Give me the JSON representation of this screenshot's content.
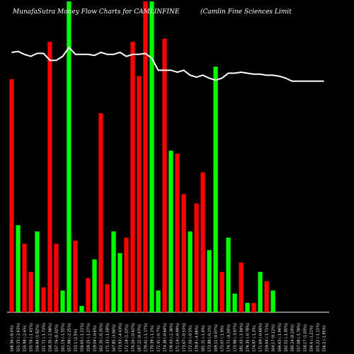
{
  "header": {
    "title_left": "MunafaSutra  Money Flow  Charts for CAMLINFINE",
    "title_right": "(Camlin  Fine   Sciences Limit"
  },
  "colors": {
    "up": "#00ff00",
    "down": "#ff0000",
    "line": "#ffffff",
    "background": "#000000"
  },
  "chart_data": {
    "type": "bar",
    "ylim": [
      0,
      100
    ],
    "line_ylim": [
      0,
      100
    ],
    "categories": [
      "168.36 (-8.0%)",
      "151.33 (-2.63%)",
      "155.98 (-2.6%)",
      "155.76 (-1.41%)",
      "156.84 (1.82%)",
      "151.71 (-1.73%)",
      "158.35 (-2.08%)",
      "157.76 (0.32%)",
      "161.19 (-1.55%)",
      "157.98 (-2.25%)",
      "153.1 (2.5%)",
      "156.65 (-1.21%)",
      "159.25 (-1.27%)",
      "159.04 (-0.6%)",
      "162.35 (-0.35%)",
      "171.33 (-1.59%)",
      "167.85 (3.06%)",
      "173.93 (-4.43%)",
      "172.18 (1.32%)",
      "176.26 (-0.42%)",
      "187.22 (0.47%)",
      "179.41 (-1.17%)",
      "170.39 (-1.2%)",
      "172.41 (-0.7%)",
      "174.36 (-0.64%)",
      "178.43 (-2.36%)",
      "171.19 (-0.99%)",
      "173.67 (-0.53%)",
      "172.55 (-0.3%)",
      "179.9 (-4.08%)",
      "181.31 (-1.6%)",
      "173.88 (-0.1%)",
      "169.11 (0.07%)",
      "173.07 (-1.9%)",
      "174.71 (4.26%)",
      "173.98 (-3.07%)",
      "181.43 (-1.04%)",
      "179.35 (-0.78%)",
      "174.97 (-1.3%)",
      "171.69 (-0.68%)",
      "159.04 (-1.71%)",
      "164.17 (0.12%)",
      "166.63 (-1.94%)",
      "162.51 (-1.05%)",
      "160.24 (0.24%)",
      "157.08 (-1.78%)",
      "158.17 (1.03%)",
      "156.6 (-1.21%)",
      "151.22 (-1.11%)",
      "156.2 (-1.95%)"
    ],
    "series": [
      {
        "values": [
          75,
          28,
          22,
          13,
          26,
          8,
          87,
          22,
          7,
          100,
          23,
          2,
          11,
          17,
          64,
          9,
          26,
          19,
          24,
          87,
          76,
          100,
          100,
          7,
          88,
          52,
          51,
          38,
          26,
          35,
          45,
          20,
          79,
          13,
          24,
          6,
          16,
          3,
          3,
          13,
          10,
          7,
          0,
          0,
          0,
          0,
          0,
          0,
          0,
          0
        ],
        "directions": [
          "down",
          "up",
          "down",
          "down",
          "up",
          "down",
          "down",
          "down",
          "up",
          "up",
          "down",
          "up",
          "down",
          "up",
          "down",
          "down",
          "up",
          "up",
          "down",
          "down",
          "down",
          "down",
          "up",
          "up",
          "down",
          "up",
          "down",
          "down",
          "up",
          "down",
          "down",
          "up",
          "up",
          "down",
          "up",
          "up",
          "down",
          "up",
          "down",
          "up",
          "down",
          "up",
          "up",
          "up",
          "up",
          "up",
          "up",
          "up",
          "up",
          "up"
        ]
      }
    ],
    "line": {
      "values": [
        90,
        91,
        88,
        86,
        89,
        89,
        82,
        82,
        86,
        95,
        88,
        88,
        88,
        87,
        90,
        88,
        88,
        90,
        86,
        88,
        88,
        89,
        84,
        72,
        72,
        72,
        70,
        72,
        67,
        65,
        67,
        64,
        62,
        64,
        69,
        69,
        70,
        69,
        68,
        68,
        67,
        67,
        66,
        64,
        61,
        61,
        61,
        61,
        61,
        61
      ]
    }
  }
}
